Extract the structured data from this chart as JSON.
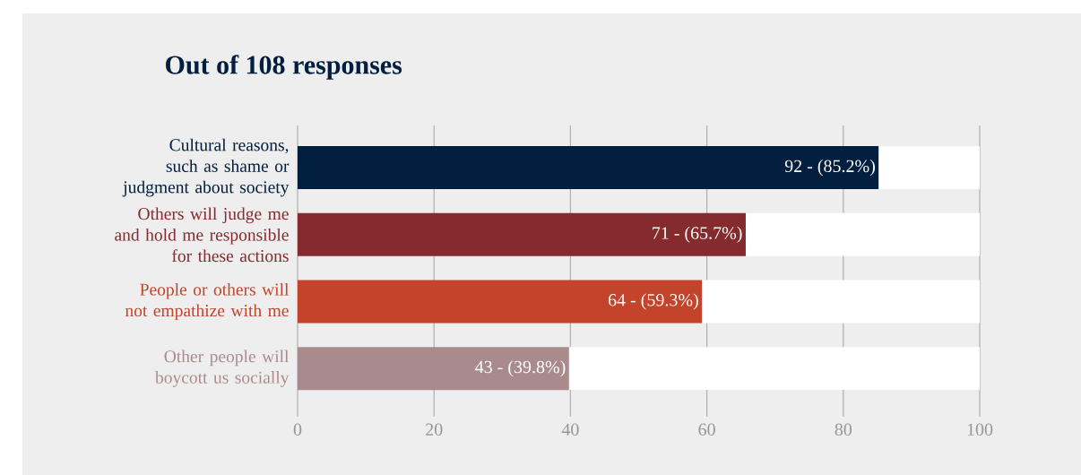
{
  "chart_data": {
    "type": "bar",
    "orientation": "horizontal",
    "stacked": true,
    "title": "Out of 108 responses",
    "categories": [
      "Cultural reasons, such as shame or judgment about society",
      "Others will judge me and hold me responsible for these actions",
      "People or others will not empathize with me",
      "Other people will boycott us socially"
    ],
    "series": [
      {
        "colors": [
          "#021f3f",
          "#852a2d",
          "#c3432b",
          "#a98b8d"
        ],
        "values": [
          85.2,
          65.7,
          59.3,
          39.8
        ],
        "value_labels": [
          "92 - (85.2%)",
          "71 - (65.7%)",
          "64 - (59.3%)",
          "43 - (39.8%)"
        ]
      },
      {
        "color": "#ffffff",
        "values": [
          14.8,
          34.3,
          40.7,
          60.2
        ]
      }
    ],
    "xlim": [
      0,
      100
    ],
    "xticks": [
      0,
      20,
      40,
      60,
      80,
      100
    ],
    "grid": "x"
  }
}
